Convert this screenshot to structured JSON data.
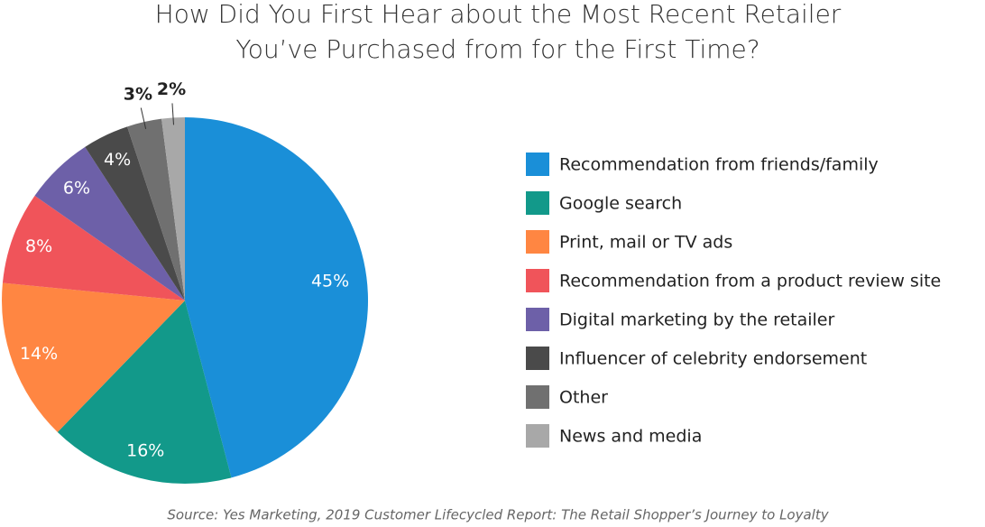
{
  "chart_data": {
    "type": "pie",
    "title": [
      "How Did You First Hear about the Most Recent Retailer",
      "You’ve Purchased from for the First Time?"
    ],
    "categories": [
      "Recommendation from friends/family",
      "Google search",
      "Print, mail or TV ads",
      "Recommendation from a product review site",
      "Digital marketing by the retailer",
      "Influencer of celebrity endorsement",
      "Other",
      "News and media"
    ],
    "values": [
      45,
      16,
      14,
      8,
      6,
      4,
      3,
      2
    ],
    "value_labels": [
      "45%",
      "16%",
      "14%",
      "8%",
      "6%",
      "4%",
      "3%",
      "2%"
    ],
    "colors": [
      "#1a8fd8",
      "#12998a",
      "#ff8642",
      "#f0545a",
      "#6d60a8",
      "#4a4a4a",
      "#707070",
      "#a8a8a8"
    ],
    "legend": "right",
    "source": "Source: Yes Marketing, 2019 Customer Lifecycled Report: The Retail Shopper’s Journey to Loyalty"
  }
}
